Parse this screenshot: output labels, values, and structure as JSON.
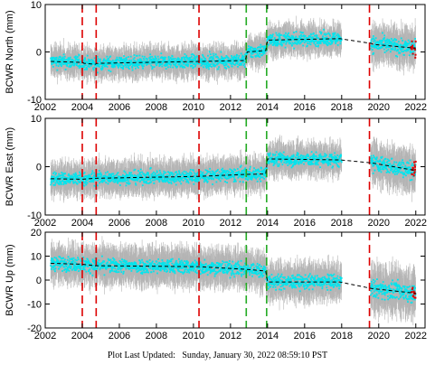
{
  "footer": {
    "label": "Plot Last Updated:",
    "timestamp": "Sunday, January 30, 2022 08:59:10 PST"
  },
  "chart_data": [
    {
      "type": "scatter",
      "ylabel": "BCWR North (mm)",
      "xlim": [
        2002,
        2022.5
      ],
      "ylim": [
        -10,
        10
      ],
      "xticks": [
        2002,
        2004,
        2006,
        2008,
        2010,
        2012,
        2014,
        2016,
        2018,
        2020,
        2022
      ],
      "yticks": [
        -10,
        0,
        10
      ],
      "series": [
        {
          "role": "data-errorbars",
          "color": "#b4b4b4"
        },
        {
          "role": "data-points",
          "color": "#00e5ee"
        },
        {
          "role": "model",
          "style": "dashed",
          "color": "#000000",
          "x": [
            2002.3,
            2004.0,
            2004.1,
            2004.7,
            2004.8,
            2010.3,
            2010.4,
            2012.8,
            2012.9,
            2013.9,
            2014.0,
            2017.9,
            2019.6,
            2019.7,
            2022.0
          ],
          "y": [
            -2.0,
            -2.2,
            -2.4,
            -2.6,
            -2.4,
            -2.0,
            -2.0,
            -1.8,
            0.0,
            0.3,
            2.5,
            2.8,
            1.8,
            1.6,
            0.8
          ]
        }
      ],
      "vlines": [
        {
          "x": 2004.0,
          "color": "#dd0000"
        },
        {
          "x": 2004.75,
          "color": "#dd0000"
        },
        {
          "x": 2010.3,
          "color": "#dd0000"
        },
        {
          "x": 2012.85,
          "color": "#22aa22"
        },
        {
          "x": 2013.95,
          "color": "#22aa22"
        },
        {
          "x": 2019.5,
          "color": "#dd0000"
        }
      ],
      "grid": false
    },
    {
      "type": "scatter",
      "ylabel": "BCWR East (mm)",
      "xlim": [
        2002,
        2022.5
      ],
      "ylim": [
        -10,
        10
      ],
      "xticks": [
        2002,
        2004,
        2006,
        2008,
        2010,
        2012,
        2014,
        2016,
        2018,
        2020,
        2022
      ],
      "yticks": [
        -10,
        0,
        10
      ],
      "series": [
        {
          "role": "data-errorbars",
          "color": "#b4b4b4"
        },
        {
          "role": "data-points",
          "color": "#00e5ee"
        },
        {
          "role": "model",
          "style": "dashed",
          "color": "#000000",
          "x": [
            2002.3,
            2004.0,
            2004.7,
            2010.3,
            2012.8,
            2013.9,
            2014.0,
            2017.9,
            2019.6,
            2022.0
          ],
          "y": [
            -2.5,
            -2.6,
            -2.4,
            -2.0,
            -1.6,
            -1.5,
            1.6,
            1.4,
            0.8,
            -0.8
          ]
        }
      ],
      "vlines": [
        {
          "x": 2004.0,
          "color": "#dd0000"
        },
        {
          "x": 2004.75,
          "color": "#dd0000"
        },
        {
          "x": 2010.3,
          "color": "#dd0000"
        },
        {
          "x": 2012.85,
          "color": "#22aa22"
        },
        {
          "x": 2013.95,
          "color": "#22aa22"
        },
        {
          "x": 2019.5,
          "color": "#dd0000"
        }
      ],
      "grid": false
    },
    {
      "type": "scatter",
      "ylabel": "BCWR Up (mm)",
      "xlim": [
        2002,
        2022.5
      ],
      "ylim": [
        -20,
        20
      ],
      "xticks": [
        2002,
        2004,
        2006,
        2008,
        2010,
        2012,
        2014,
        2016,
        2018,
        2020,
        2022
      ],
      "yticks": [
        -20,
        -10,
        0,
        10,
        20
      ],
      "series": [
        {
          "role": "data-errorbars",
          "color": "#b4b4b4"
        },
        {
          "role": "data-points",
          "color": "#00e5ee"
        },
        {
          "role": "model",
          "style": "dashed",
          "color": "#000000",
          "x": [
            2002.3,
            2004.0,
            2004.7,
            2010.3,
            2012.8,
            2013.9,
            2014.0,
            2017.9,
            2019.6,
            2022.0
          ],
          "y": [
            7.0,
            6.6,
            6.0,
            5.6,
            4.5,
            3.8,
            -0.8,
            -0.8,
            -3.5,
            -5.5
          ]
        }
      ],
      "vlines": [
        {
          "x": 2004.0,
          "color": "#dd0000"
        },
        {
          "x": 2004.75,
          "color": "#dd0000"
        },
        {
          "x": 2010.3,
          "color": "#dd0000"
        },
        {
          "x": 2012.85,
          "color": "#22aa22"
        },
        {
          "x": 2013.95,
          "color": "#22aa22"
        },
        {
          "x": 2019.5,
          "color": "#dd0000"
        }
      ],
      "grid": false
    }
  ]
}
